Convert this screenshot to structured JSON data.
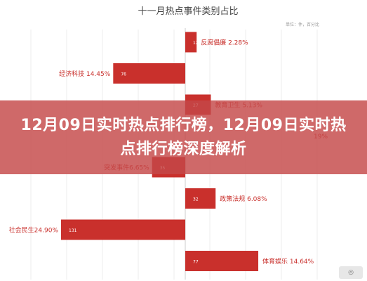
{
  "overlay": {
    "text": "12月09日实时热点排行榜，12月09日实时热点排行榜深度解析"
  },
  "chart_data": {
    "type": "bar",
    "title": "十一月热点事件类别占比",
    "subtitle": "单位：件，百分比",
    "bar_color": "#c9302c",
    "categories": [
      "反腐倡廉",
      "经济科技",
      "教育卫生",
      "",
      "突发事件",
      "政策法规",
      "社会民生",
      "体育娱乐"
    ],
    "values": [
      12,
      76,
      27,
      null,
      35,
      32,
      131,
      77
    ],
    "labels": [
      "反腐倡廉 2.28%",
      "经济科技 14.45%",
      "教育卫生 5.13%",
      "19%",
      "突发事件6.65%",
      "政策法规 6.08%",
      "社会民生24.90%",
      "体育娱乐 14.64%"
    ],
    "sides": [
      "right",
      "left",
      "right",
      "right",
      "left",
      "right",
      "left",
      "right"
    ],
    "grid": true
  }
}
